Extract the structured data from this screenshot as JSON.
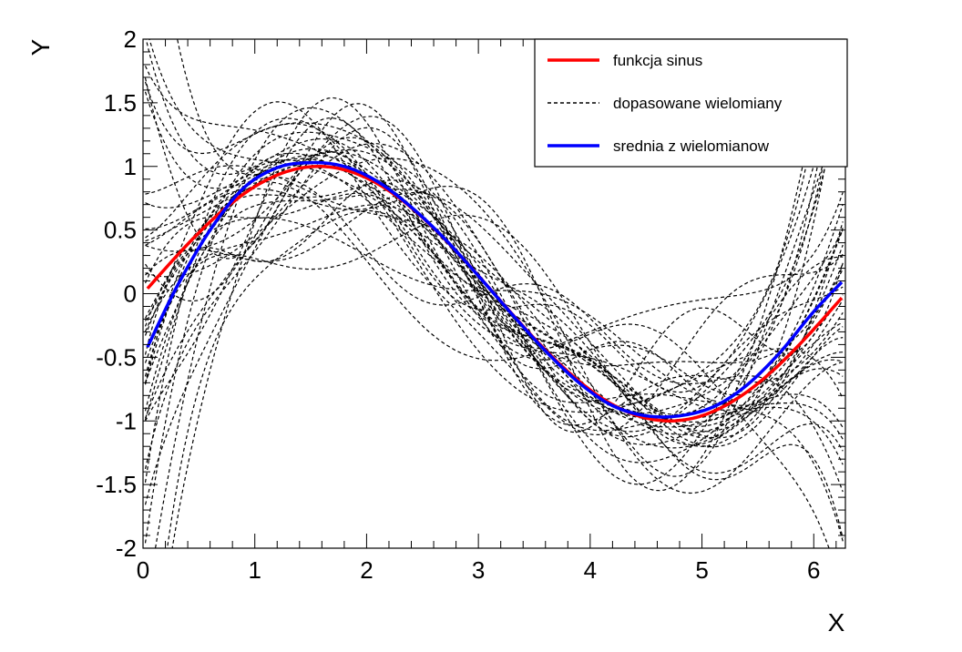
{
  "chart_data": {
    "type": "line",
    "title": "",
    "xlabel": "X",
    "ylabel": "Y",
    "xlim": [
      0,
      6.283
    ],
    "ylim": [
      -2,
      2
    ],
    "x_ticks": [
      "0",
      "1",
      "2",
      "3",
      "4",
      "5",
      "6"
    ],
    "y_ticks": [
      "-2",
      "-1.5",
      "-1",
      "-0.5",
      "0",
      "0.5",
      "1",
      "1.5",
      "2"
    ],
    "legend": {
      "position": "top-right",
      "entries": [
        {
          "label": "funkcja sinus",
          "color": "#ff0000",
          "style": "solid"
        },
        {
          "label": "dopasowane wielomiany",
          "color": "#000000",
          "style": "dashed"
        },
        {
          "label": "srednia z wielomianow",
          "color": "#0000ff",
          "style": "solid"
        }
      ]
    },
    "series": [
      {
        "name": "funkcja sinus",
        "color": "#ff0000",
        "style": "solid",
        "function": "sin(x)"
      },
      {
        "name": "srednia z wielomianow",
        "color": "#0000ff",
        "style": "solid",
        "x": [
          0.04,
          0.3,
          0.6,
          0.9,
          1.2,
          1.5,
          1.8,
          2.1,
          2.4,
          2.7,
          3.0,
          3.3,
          3.6,
          3.9,
          4.2,
          4.5,
          4.8,
          5.1,
          5.4,
          5.7,
          6.0,
          6.25
        ],
        "y": [
          -0.42,
          0.05,
          0.5,
          0.83,
          0.99,
          1.03,
          1.0,
          0.88,
          0.68,
          0.43,
          0.14,
          -0.16,
          -0.45,
          -0.7,
          -0.88,
          -0.96,
          -0.96,
          -0.89,
          -0.72,
          -0.46,
          -0.14,
          0.09
        ]
      },
      {
        "name": "dopasowane wielomiany",
        "color": "#000000",
        "style": "dashed",
        "count": 40
      }
    ]
  }
}
